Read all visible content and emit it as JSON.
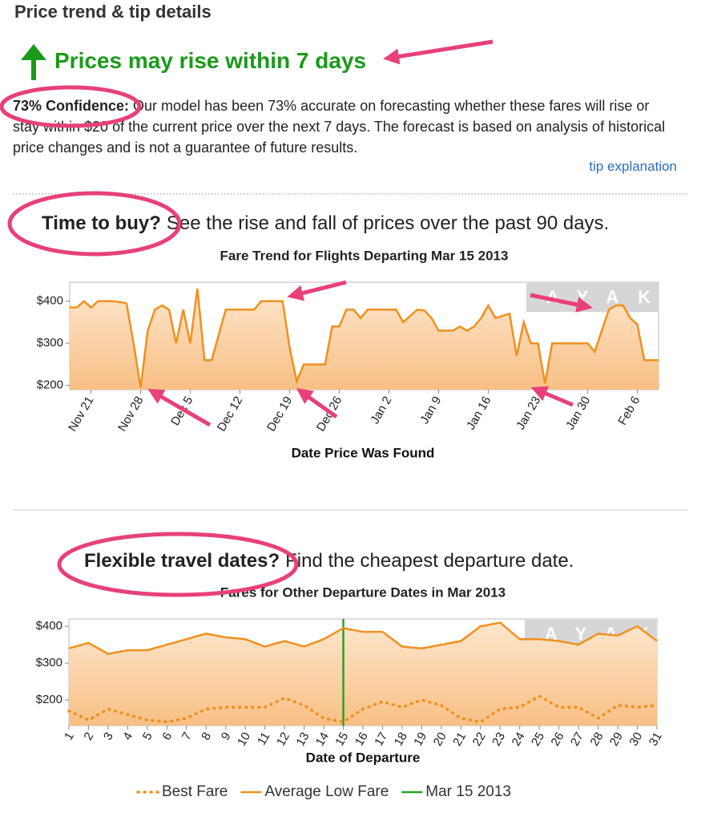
{
  "header": {
    "title": "Price trend & tip details",
    "forecast": "Prices may rise within 7 days",
    "confidence_label": "73% Confidence:",
    "confidence_text": "Our model has been 73% accurate on forecasting whether these fares will rise or stay within $20 of the current price over the next 7 days. The forecast is based on analysis of historical price changes and is not a guarantee of future results.",
    "link": "tip explanation"
  },
  "sections": [
    {
      "question": "Time to buy?",
      "text": "See the rise and fall of prices over the past 90 days."
    },
    {
      "question": "Flexible travel dates?",
      "text": "Find the cheapest departure date."
    }
  ],
  "chart_data": [
    {
      "type": "area",
      "title": "Fare Trend for Flights Departing Mar 15 2013",
      "xlabel": "Date Price Was Found",
      "watermark": "KAYAK",
      "color": "#f0901e",
      "categories": [
        null,
        null,
        null,
        "Nov 21",
        null,
        null,
        null,
        null,
        null,
        null,
        "Nov 28",
        null,
        null,
        null,
        null,
        null,
        null,
        "Dec 5",
        null,
        null,
        null,
        null,
        null,
        null,
        "Dec 12",
        null,
        null,
        null,
        null,
        null,
        null,
        "Dec 19",
        null,
        null,
        null,
        null,
        null,
        null,
        "Dec 26",
        null,
        null,
        null,
        null,
        null,
        null,
        "Jan 2",
        null,
        null,
        null,
        null,
        null,
        null,
        "Jan 9",
        null,
        null,
        null,
        null,
        null,
        null,
        "Jan 16",
        null,
        null,
        null,
        null,
        null,
        null,
        "Jan 23",
        null,
        null,
        null,
        null,
        null,
        null,
        "Jan 30",
        null,
        null,
        null,
        null,
        null,
        null,
        "Feb 6",
        null,
        null,
        null
      ],
      "values": [
        385,
        385,
        400,
        385,
        400,
        400,
        400,
        398,
        395,
        300,
        195,
        330,
        380,
        390,
        380,
        300,
        380,
        300,
        430,
        260,
        260,
        320,
        380,
        380,
        380,
        380,
        380,
        400,
        400,
        400,
        400,
        290,
        210,
        250,
        250,
        250,
        250,
        340,
        340,
        380,
        380,
        360,
        380,
        380,
        380,
        380,
        380,
        350,
        365,
        380,
        378,
        360,
        330,
        330,
        330,
        340,
        330,
        340,
        360,
        390,
        360,
        365,
        370,
        270,
        350,
        300,
        300,
        205,
        300,
        300,
        300,
        300,
        300,
        300,
        280,
        330,
        380,
        390,
        390,
        360,
        345,
        260,
        260,
        260
      ],
      "ylim": [
        190,
        445
      ],
      "yticks": [
        {
          "value": 200,
          "label": "$200"
        },
        {
          "value": 300,
          "label": "$300"
        },
        {
          "value": 400,
          "label": "$400"
        }
      ]
    },
    {
      "type": "area",
      "title": "Fares for Other Departure Dates in Mar 2013",
      "xlabel": "Date of Departure",
      "watermark": "KAYAK",
      "x": [
        1,
        2,
        3,
        4,
        5,
        6,
        7,
        8,
        9,
        10,
        11,
        12,
        13,
        14,
        15,
        16,
        17,
        18,
        19,
        20,
        21,
        22,
        23,
        24,
        25,
        26,
        27,
        28,
        29,
        30,
        31
      ],
      "xlim": [
        1,
        31
      ],
      "xticks": [
        1,
        2,
        3,
        4,
        5,
        6,
        7,
        8,
        9,
        10,
        11,
        12,
        13,
        14,
        15,
        16,
        17,
        18,
        19,
        20,
        21,
        22,
        23,
        24,
        25,
        26,
        27,
        28,
        29,
        30,
        31
      ],
      "series": [
        {
          "name": "Best Fare",
          "color": "#f0901e",
          "dotted": true,
          "values": [
            170,
            145,
            175,
            160,
            145,
            140,
            150,
            175,
            180,
            180,
            180,
            205,
            185,
            150,
            140,
            175,
            195,
            180,
            200,
            185,
            150,
            140,
            175,
            180,
            210,
            180,
            180,
            150,
            185,
            180,
            185
          ]
        },
        {
          "name": "Average Low Fare",
          "color": "#f0901e",
          "dotted": false,
          "values": [
            340,
            355,
            325,
            335,
            335,
            350,
            365,
            380,
            370,
            365,
            345,
            360,
            345,
            365,
            395,
            385,
            385,
            345,
            340,
            350,
            360,
            400,
            410,
            365,
            365,
            360,
            350,
            380,
            375,
            400,
            360
          ]
        }
      ],
      "vline": {
        "name": "Mar 15 2013",
        "color": "#2aa02a",
        "x": 15
      },
      "ylim": [
        130,
        420
      ],
      "yticks": [
        {
          "value": 200,
          "label": "$200"
        },
        {
          "value": 300,
          "label": "$300"
        },
        {
          "value": 400,
          "label": "$400"
        }
      ]
    }
  ]
}
